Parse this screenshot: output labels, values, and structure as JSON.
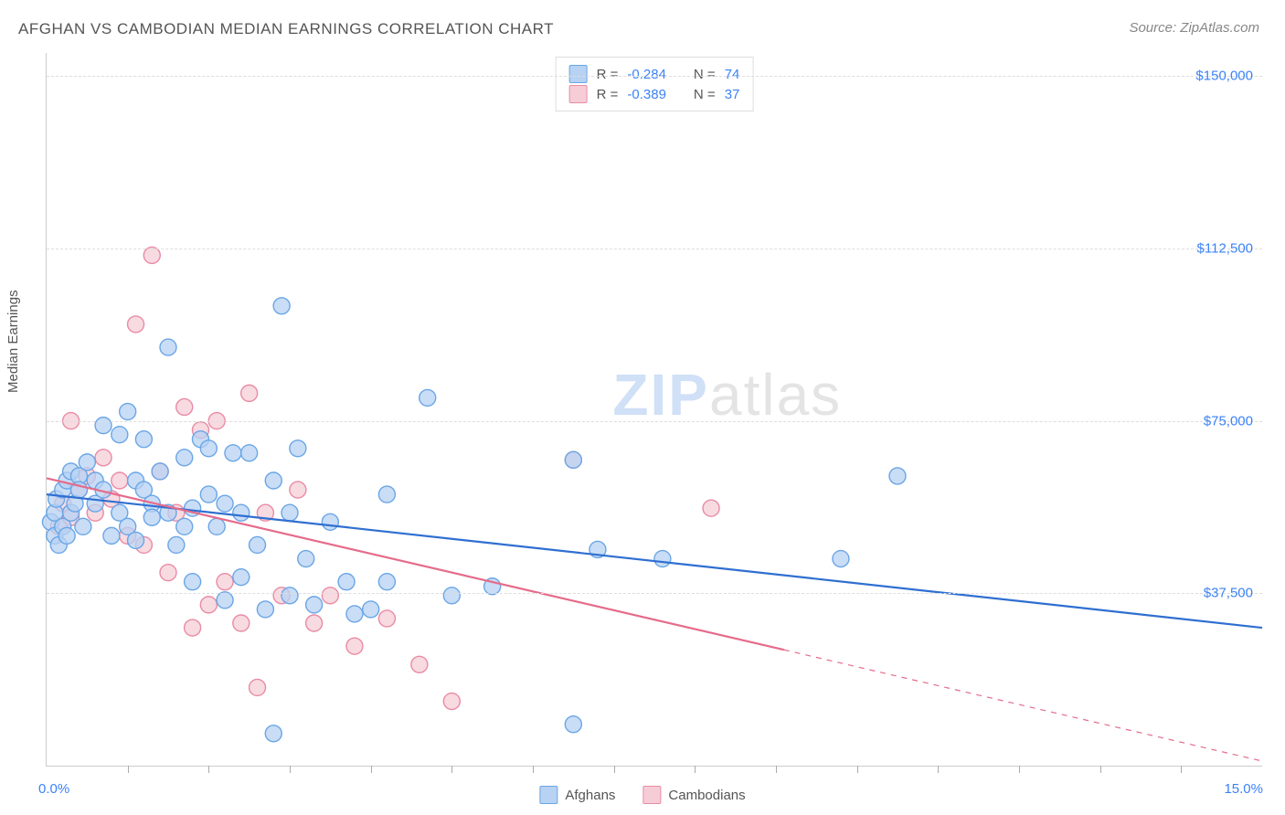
{
  "title": "AFGHAN VS CAMBODIAN MEDIAN EARNINGS CORRELATION CHART",
  "source_label": "Source: ZipAtlas.com",
  "ylabel": "Median Earnings",
  "watermark_a": "ZIP",
  "watermark_b": "atlas",
  "chart": {
    "type": "scatter",
    "xlim": [
      0,
      15
    ],
    "ylim": [
      0,
      155000
    ],
    "x_tick_step": 1.0,
    "y_ticks": [
      37500,
      75000,
      112500,
      150000
    ],
    "y_tick_labels": [
      "$37,500",
      "$75,000",
      "$112,500",
      "$150,000"
    ],
    "x_min_label": "0.0%",
    "x_max_label": "15.0%",
    "grid_color": "#dddddd",
    "axis_color": "#cccccc",
    "tick_label_color": "#3b82f6",
    "background_color": "#ffffff",
    "marker_radius": 9,
    "marker_stroke_width": 1.4,
    "line_width": 2.2,
    "series": [
      {
        "name": "Afghans",
        "fill": "#b7d2f3",
        "stroke": "#6aa6e6",
        "line_color": "#2f6fd1",
        "R": "-0.284",
        "N": "74",
        "trend": {
          "x1": 0,
          "y1": 59000,
          "x2": 15,
          "y2": 30000,
          "dash_from_x": 15
        },
        "points": [
          [
            0.05,
            53000
          ],
          [
            0.1,
            50000
          ],
          [
            0.1,
            55000
          ],
          [
            0.12,
            58000
          ],
          [
            0.15,
            48000
          ],
          [
            0.2,
            60000
          ],
          [
            0.2,
            52000
          ],
          [
            0.25,
            62000
          ],
          [
            0.25,
            50000
          ],
          [
            0.3,
            55000
          ],
          [
            0.3,
            64000
          ],
          [
            0.35,
            57000
          ],
          [
            0.4,
            63000
          ],
          [
            0.4,
            60000
          ],
          [
            0.45,
            52000
          ],
          [
            0.5,
            66000
          ],
          [
            0.6,
            57000
          ],
          [
            0.6,
            62000
          ],
          [
            0.7,
            60000
          ],
          [
            0.7,
            74000
          ],
          [
            0.8,
            50000
          ],
          [
            0.9,
            72000
          ],
          [
            0.9,
            55000
          ],
          [
            1.0,
            77000
          ],
          [
            1.0,
            52000
          ],
          [
            1.1,
            62000
          ],
          [
            1.1,
            49000
          ],
          [
            1.2,
            71000
          ],
          [
            1.2,
            60000
          ],
          [
            1.3,
            57000
          ],
          [
            1.3,
            54000
          ],
          [
            1.4,
            64000
          ],
          [
            1.5,
            91000
          ],
          [
            1.5,
            55000
          ],
          [
            1.6,
            48000
          ],
          [
            1.7,
            67000
          ],
          [
            1.7,
            52000
          ],
          [
            1.8,
            40000
          ],
          [
            1.8,
            56000
          ],
          [
            1.9,
            71000
          ],
          [
            2.0,
            69000
          ],
          [
            2.0,
            59000
          ],
          [
            2.1,
            52000
          ],
          [
            2.2,
            36000
          ],
          [
            2.2,
            57000
          ],
          [
            2.3,
            68000
          ],
          [
            2.4,
            41000
          ],
          [
            2.4,
            55000
          ],
          [
            2.5,
            68000
          ],
          [
            2.6,
            48000
          ],
          [
            2.7,
            34000
          ],
          [
            2.8,
            7000
          ],
          [
            2.8,
            62000
          ],
          [
            2.9,
            100000
          ],
          [
            3.0,
            37000
          ],
          [
            3.0,
            55000
          ],
          [
            3.1,
            69000
          ],
          [
            3.2,
            45000
          ],
          [
            3.3,
            35000
          ],
          [
            3.5,
            53000
          ],
          [
            3.7,
            40000
          ],
          [
            3.8,
            33000
          ],
          [
            4.0,
            34000
          ],
          [
            4.2,
            59000
          ],
          [
            4.2,
            40000
          ],
          [
            4.7,
            80000
          ],
          [
            5.0,
            37000
          ],
          [
            5.5,
            39000
          ],
          [
            6.5,
            9000
          ],
          [
            6.8,
            47000
          ],
          [
            7.6,
            45000
          ],
          [
            9.8,
            45000
          ],
          [
            10.5,
            63000
          ],
          [
            6.5,
            66500
          ]
        ]
      },
      {
        "name": "Cambodians",
        "fill": "#f6cdd7",
        "stroke": "#e98ba4",
        "line_color": "#e56b8a",
        "R": "-0.389",
        "N": "37",
        "trend": {
          "x1": 0,
          "y1": 62500,
          "x2": 15,
          "y2": 1000,
          "dash_from_x": 9.1
        },
        "points": [
          [
            0.15,
            52000
          ],
          [
            0.2,
            57000
          ],
          [
            0.3,
            75000
          ],
          [
            0.3,
            54000
          ],
          [
            0.4,
            60000
          ],
          [
            0.5,
            63000
          ],
          [
            0.6,
            55000
          ],
          [
            0.7,
            67000
          ],
          [
            0.8,
            58000
          ],
          [
            0.9,
            62000
          ],
          [
            1.0,
            50000
          ],
          [
            1.1,
            96000
          ],
          [
            1.2,
            48000
          ],
          [
            1.3,
            111000
          ],
          [
            1.4,
            64000
          ],
          [
            1.5,
            42000
          ],
          [
            1.6,
            55000
          ],
          [
            1.7,
            78000
          ],
          [
            1.8,
            30000
          ],
          [
            1.9,
            73000
          ],
          [
            2.0,
            35000
          ],
          [
            2.1,
            75000
          ],
          [
            2.2,
            40000
          ],
          [
            2.4,
            31000
          ],
          [
            2.5,
            81000
          ],
          [
            2.6,
            17000
          ],
          [
            2.7,
            55000
          ],
          [
            2.9,
            37000
          ],
          [
            3.1,
            60000
          ],
          [
            3.3,
            31000
          ],
          [
            3.5,
            37000
          ],
          [
            3.8,
            26000
          ],
          [
            4.2,
            32000
          ],
          [
            4.6,
            22000
          ],
          [
            5.0,
            14000
          ],
          [
            6.5,
            66500
          ],
          [
            8.2,
            56000
          ]
        ]
      }
    ]
  },
  "legend_top": {
    "r_label": "R =",
    "n_label": "N ="
  },
  "legend_bottom": {
    "items": [
      "Afghans",
      "Cambodians"
    ]
  }
}
